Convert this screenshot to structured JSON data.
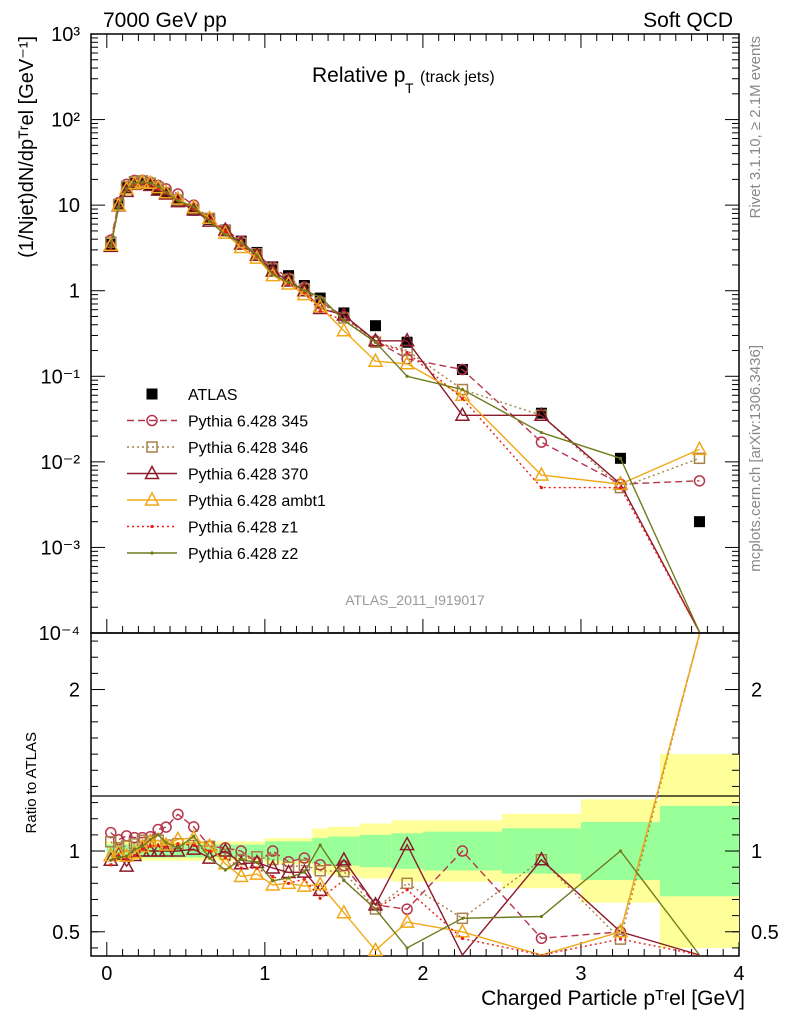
{
  "header": {
    "left": "7000 GeV pp",
    "right": "Soft QCD",
    "plot_title": "Relative p",
    "plot_title_sub": "T",
    "plot_title_note": "(track jets)",
    "analysis": "ATLAS_2011_I919017",
    "side_rivet": "Rivet 3.1.10, ≥ 2.1M events",
    "side_mcplots": "mcplots.cern.ch [arXiv:1306.3436]"
  },
  "axes": {
    "ylabel_top": "(1/Njet)dN/dpᵀʳel [GeV⁻¹]",
    "ylabel_bottom": "Ratio to ATLAS",
    "xlabel": "Charged Particle pᵀʳel [GeV]"
  },
  "chart_data": [
    {
      "type": "scatter",
      "panel": "main",
      "yscale": "log",
      "xlim": [
        -0.1,
        4.0
      ],
      "ylim": [
        0.0001,
        1000
      ],
      "yticks": [
        "10⁻⁴",
        "10⁻³",
        "10⁻²",
        "10⁻¹",
        "1",
        "10",
        "10²",
        "10³"
      ],
      "xticks": [
        "0",
        "1",
        "2",
        "3",
        "4"
      ],
      "legend_position": "middle-left",
      "x": [
        0.025,
        0.075,
        0.125,
        0.175,
        0.225,
        0.275,
        0.325,
        0.375,
        0.45,
        0.55,
        0.65,
        0.75,
        0.85,
        0.95,
        1.05,
        1.15,
        1.25,
        1.35,
        1.5,
        1.7,
        1.9,
        2.25,
        2.75,
        3.25,
        3.75
      ],
      "series": [
        {
          "name": "ATLAS",
          "color": "#000000",
          "marker": "square",
          "line": "none",
          "values": [
            3.5,
            10,
            16,
            18,
            18,
            17,
            15,
            13.5,
            11,
            8.7,
            6.8,
            5.1,
            3.8,
            2.8,
            1.9,
            1.5,
            1.15,
            0.82,
            0.55,
            0.39,
            0.25,
            0.12,
            0.037,
            0.011,
            0.002
          ]
        },
        {
          "name": "Pythia 6.428 345",
          "color": "#b5364a",
          "marker": "circle-open",
          "line": "dashed",
          "values": [
            3.9,
            10.7,
            17.5,
            19.5,
            19.5,
            18.5,
            17,
            15.5,
            13.5,
            10,
            7,
            5.2,
            3.8,
            2.6,
            1.9,
            1.4,
            1.1,
            0.75,
            0.5,
            0.26,
            0.16,
            0.12,
            0.017,
            0.0055,
            0.006
          ]
        },
        {
          "name": "Pythia 6.428 346",
          "color": "#a8804a",
          "marker": "square-open",
          "line": "dotted",
          "values": [
            3.7,
            10.2,
            16.5,
            18.8,
            19.2,
            18,
            16,
            14,
            11.5,
            9,
            7,
            5,
            3.6,
            2.7,
            1.8,
            1.35,
            1.05,
            0.72,
            0.48,
            0.25,
            0.2,
            0.07,
            0.035,
            0.005,
            0.011
          ]
        },
        {
          "name": "Pythia 6.428 370",
          "color": "#8b1a2b",
          "marker": "triangle-open",
          "line": "solid",
          "values": [
            3.3,
            9.8,
            14.5,
            17.5,
            18,
            17,
            15,
            13.5,
            11,
            8.8,
            6.5,
            5.1,
            3.5,
            2.6,
            1.7,
            1.3,
            1.0,
            0.62,
            0.52,
            0.26,
            0.26,
            0.035,
            0.035,
            0.0055,
            0.0
          ]
        },
        {
          "name": "Pythia 6.428 ambt1",
          "color": "#f0a818",
          "marker": "triangle-open",
          "line": "solid",
          "values": [
            3.4,
            9.9,
            15.5,
            17.8,
            18.5,
            18,
            16,
            14,
            11.8,
            9.4,
            7,
            4.7,
            3.2,
            2.4,
            1.5,
            1.2,
            0.9,
            0.65,
            0.34,
            0.15,
            0.14,
            0.06,
            0.007,
            0.0055,
            0.014
          ]
        },
        {
          "name": "Pythia 6.428 z1",
          "color": "#e8201a",
          "marker": "dot",
          "line": "dotted",
          "values": [
            3.2,
            9.7,
            15.2,
            17.5,
            18.2,
            17.5,
            15.5,
            13.8,
            11.5,
            9,
            6.8,
            4.9,
            3.4,
            2.5,
            1.6,
            1.2,
            0.95,
            0.58,
            0.45,
            0.25,
            0.19,
            0.055,
            0.005,
            0.005,
            0.0
          ]
        },
        {
          "name": "Pythia 6.428 z2",
          "color": "#6e7c1e",
          "marker": "dot",
          "line": "solid",
          "values": [
            3.3,
            9.6,
            15.5,
            18.2,
            18.5,
            18.2,
            16.5,
            14.2,
            11.2,
            9.5,
            6.5,
            4.5,
            3.6,
            2.6,
            1.55,
            1.25,
            1.0,
            0.85,
            0.45,
            0.25,
            0.1,
            0.07,
            0.022,
            0.011,
            0.0
          ]
        }
      ]
    },
    {
      "type": "line",
      "panel": "ratio",
      "ylabel": "Ratio to ATLAS",
      "ylim": [
        0.35,
        2.35
      ],
      "yticks": [
        "0.5",
        "1",
        "2"
      ],
      "xlim": [
        -0.1,
        4.0
      ],
      "bands": {
        "edges": [
          0,
          0.5,
          1.0,
          1.3,
          1.4,
          1.6,
          1.8,
          2.0,
          2.5,
          3.0,
          3.5,
          4.0
        ],
        "green_half_width": [
          0.04,
          0.04,
          0.06,
          0.08,
          0.09,
          0.1,
          0.11,
          0.12,
          0.14,
          0.18,
          0.28,
          0.6
        ],
        "yellow_half_width": [
          0.06,
          0.06,
          0.08,
          0.14,
          0.15,
          0.17,
          0.19,
          0.19,
          0.23,
          0.32,
          0.6,
          1.2
        ],
        "green_color": "#99ff99",
        "yellow_color": "#ffff99"
      }
    }
  ]
}
